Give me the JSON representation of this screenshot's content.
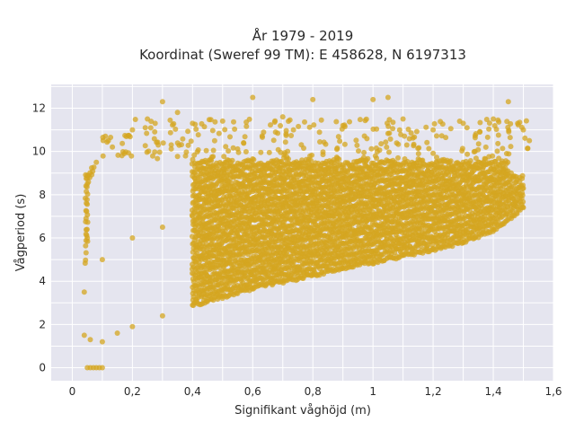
{
  "chart_data": {
    "type": "scatter",
    "title_line1": "År 1979 - 2019",
    "title_line2": "Koordinat (Sweref 99 TM): E 458628, N 6197313",
    "xlabel": "Signifikant våghöjd (m)",
    "ylabel": "Vågperiod (s)",
    "xlim": [
      -0.07,
      1.6
    ],
    "ylim": [
      -0.6,
      13.1
    ],
    "xticks": [
      0,
      0.2,
      0.4,
      0.6,
      0.8,
      1,
      1.2,
      1.4,
      1.6
    ],
    "xtick_labels": [
      "0",
      "0,2",
      "0,4",
      "0,6",
      "0,8",
      "1",
      "1,2",
      "1,4",
      "1,6"
    ],
    "yticks": [
      0,
      2,
      4,
      6,
      8,
      10,
      12
    ],
    "ytick_labels": [
      "0",
      "2",
      "4",
      "6",
      "8",
      "10",
      "12"
    ],
    "grid": true,
    "legend": "none",
    "marker_color": "#d4a520",
    "plot_background": "#e5e5ef",
    "series": [
      {
        "values": [
          [
            0.05,
            0
          ],
          [
            0.06,
            0
          ],
          [
            0.07,
            0
          ],
          [
            0.08,
            0
          ],
          [
            0.09,
            0
          ],
          [
            0.1,
            0
          ],
          [
            0.04,
            1.5
          ],
          [
            0.06,
            1.3
          ],
          [
            0.1,
            1.2
          ],
          [
            0.15,
            1.6
          ],
          [
            0.2,
            1.9
          ],
          [
            0.3,
            2.4
          ],
          [
            0.4,
            2.9
          ],
          [
            0.5,
            3.3
          ],
          [
            0.6,
            3.7
          ],
          [
            0.7,
            4.0
          ],
          [
            0.8,
            4.3
          ],
          [
            0.9,
            4.6
          ],
          [
            1.0,
            4.9
          ],
          [
            1.1,
            5.2
          ],
          [
            1.2,
            5.5
          ],
          [
            1.3,
            5.8
          ],
          [
            1.4,
            6.4
          ],
          [
            1.5,
            7.4
          ],
          [
            0.04,
            3.5
          ],
          [
            0.05,
            6.0
          ],
          [
            0.05,
            8.5
          ],
          [
            0.08,
            9.5
          ],
          [
            0.12,
            10.5
          ],
          [
            0.2,
            11.0
          ],
          [
            0.25,
            11.5
          ],
          [
            0.3,
            12.3
          ],
          [
            0.35,
            11.8
          ],
          [
            0.4,
            11.3
          ],
          [
            0.5,
            11.4
          ],
          [
            0.6,
            12.5
          ],
          [
            0.7,
            11.6
          ],
          [
            0.8,
            12.4
          ],
          [
            0.9,
            11.2
          ],
          [
            1.0,
            12.4
          ],
          [
            1.05,
            12.5
          ],
          [
            1.1,
            11.5
          ],
          [
            1.2,
            11.0
          ],
          [
            1.3,
            11.3
          ],
          [
            1.4,
            11.5
          ],
          [
            1.45,
            12.3
          ],
          [
            1.5,
            11.0
          ],
          [
            1.52,
            10.5
          ],
          [
            0.1,
            5.0
          ],
          [
            0.2,
            6.0
          ],
          [
            0.3,
            6.5
          ],
          [
            0.4,
            7.0
          ],
          [
            0.5,
            7.2
          ],
          [
            0.6,
            7.4
          ],
          [
            0.7,
            7.5
          ],
          [
            0.8,
            7.6
          ],
          [
            0.9,
            7.7
          ],
          [
            1.0,
            7.8
          ],
          [
            1.1,
            7.9
          ],
          [
            1.2,
            8.0
          ],
          [
            1.3,
            8.0
          ],
          [
            1.4,
            8.1
          ],
          [
            1.5,
            8.3
          ]
        ]
      }
    ]
  }
}
